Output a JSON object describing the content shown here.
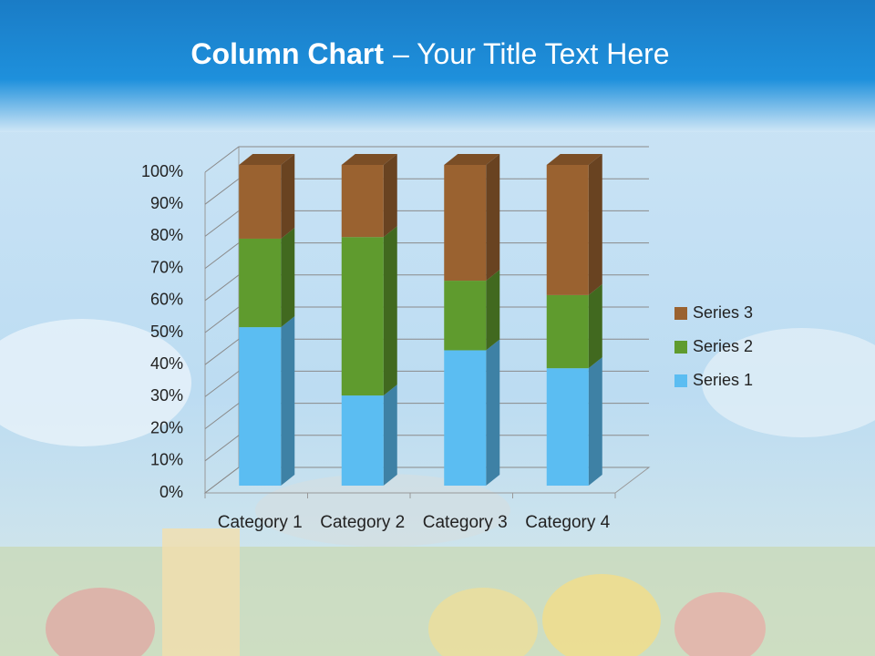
{
  "chart_data": {
    "type": "bar",
    "stacked": true,
    "title": "Column Chart",
    "title_suffix": "– Your Title Text Here",
    "categories": [
      "Category 1",
      "Category 2",
      "Category 3",
      "Category 4"
    ],
    "series": [
      {
        "name": "Series 1",
        "color": "#5bbdf2",
        "values": [
          49.4,
          28.1,
          42.2,
          36.6
        ]
      },
      {
        "name": "Series 2",
        "color": "#5f9b2e",
        "values": [
          27.6,
          49.4,
          21.7,
          22.8
        ]
      },
      {
        "name": "Series 3",
        "color": "#9a6230",
        "values": [
          23.0,
          22.5,
          36.1,
          40.6
        ]
      }
    ],
    "ylim": [
      0,
      100
    ],
    "yticks": [
      {
        "value": 0,
        "label": "0%"
      },
      {
        "value": 10,
        "label": "10%"
      },
      {
        "value": 20,
        "label": "20%"
      },
      {
        "value": 30,
        "label": "30%"
      },
      {
        "value": 40,
        "label": "40%"
      },
      {
        "value": 50,
        "label": "50%"
      },
      {
        "value": 60,
        "label": "60%"
      },
      {
        "value": 70,
        "label": "70%"
      },
      {
        "value": 80,
        "label": "80%"
      },
      {
        "value": 90,
        "label": "90%"
      },
      {
        "value": 100,
        "label": "100%"
      }
    ],
    "grid": true,
    "legend": "right"
  }
}
